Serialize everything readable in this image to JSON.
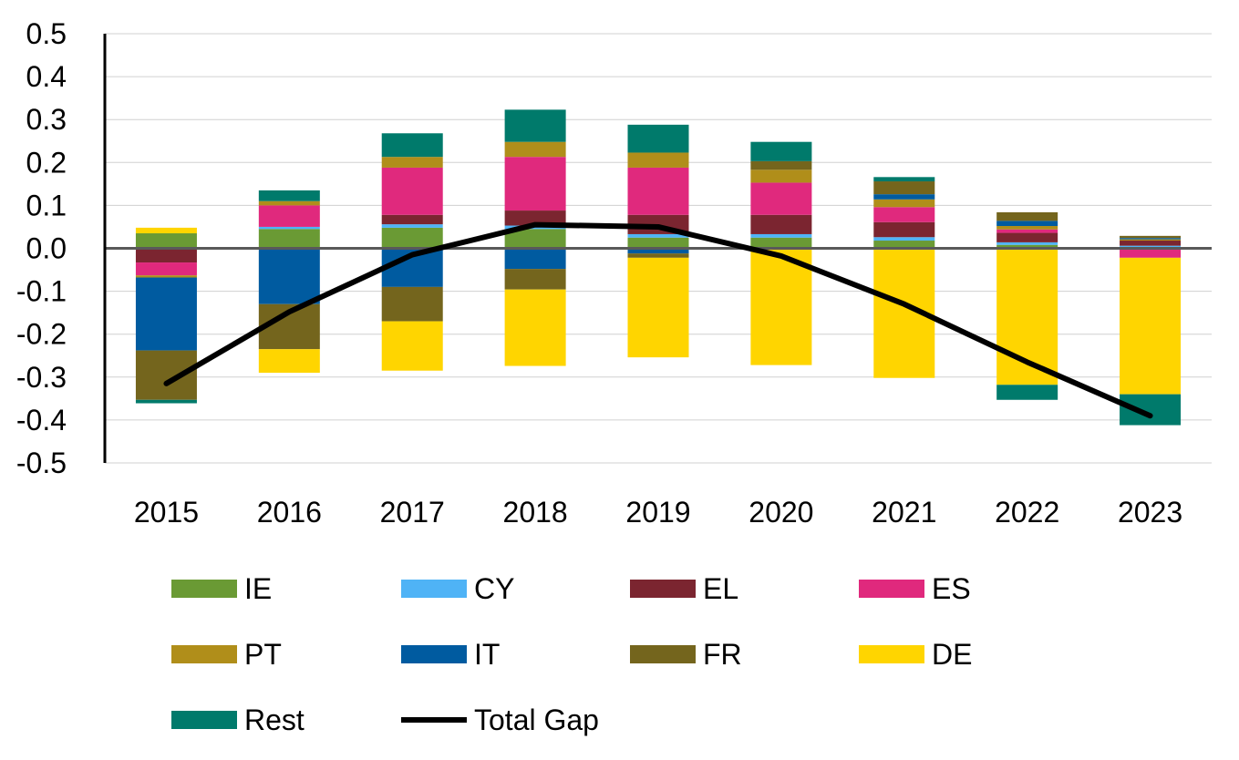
{
  "chart_data": {
    "type": "bar",
    "stacked": true,
    "categories": [
      "2015",
      "2016",
      "2017",
      "2018",
      "2019",
      "2020",
      "2021",
      "2022",
      "2023"
    ],
    "ylim": [
      -0.5,
      0.5
    ],
    "yticks": [
      "0.5",
      "0.4",
      "0.3",
      "0.2",
      "0.1",
      "0.0",
      "-0.1",
      "-0.2",
      "-0.3",
      "-0.4",
      "-0.5"
    ],
    "grid": true,
    "legend_position": "bottom",
    "series": [
      {
        "name": "IE",
        "color": "#6A9A34",
        "values": [
          0.035,
          0.045,
          0.048,
          0.045,
          0.025,
          0.025,
          0.018,
          0.008,
          0.003
        ]
      },
      {
        "name": "CY",
        "color": "#4FB3F6",
        "values": [
          -0.003,
          0.005,
          0.008,
          0.008,
          0.008,
          0.008,
          0.008,
          0.006,
          0.003
        ]
      },
      {
        "name": "EL",
        "color": "#7B2530",
        "values": [
          -0.03,
          0.0,
          0.022,
          0.035,
          0.045,
          0.045,
          0.035,
          0.022,
          0.012
        ]
      },
      {
        "name": "ES",
        "color": "#E0297D",
        "values": [
          -0.03,
          0.05,
          0.11,
          0.125,
          0.11,
          0.075,
          0.035,
          0.008,
          -0.022
        ]
      },
      {
        "name": "PT",
        "color": "#B08E1A",
        "values": [
          -0.005,
          0.01,
          0.025,
          0.035,
          0.035,
          0.03,
          0.018,
          0.008,
          0.003
        ]
      },
      {
        "name": "IT",
        "color": "#005BA0",
        "values": [
          -0.17,
          -0.13,
          -0.09,
          -0.048,
          -0.012,
          0.0,
          0.012,
          0.012,
          0.003
        ]
      },
      {
        "name": "FR",
        "color": "#74651D",
        "values": [
          -0.115,
          -0.105,
          -0.08,
          -0.048,
          -0.01,
          0.02,
          0.03,
          0.02,
          0.005
        ]
      },
      {
        "name": "DE",
        "color": "#FFD500",
        "values": [
          0.013,
          -0.055,
          -0.115,
          -0.178,
          -0.232,
          -0.272,
          -0.302,
          -0.318,
          -0.318
        ]
      },
      {
        "name": "Rest",
        "color": "#007A6B",
        "values": [
          -0.008,
          0.025,
          0.055,
          0.075,
          0.065,
          0.045,
          0.01,
          -0.035,
          -0.072
        ]
      }
    ],
    "line_series": {
      "name": "Total Gap",
      "color": "#000000",
      "values": [
        -0.315,
        -0.148,
        -0.015,
        0.055,
        0.05,
        -0.018,
        -0.13,
        -0.265,
        -0.39
      ]
    }
  }
}
